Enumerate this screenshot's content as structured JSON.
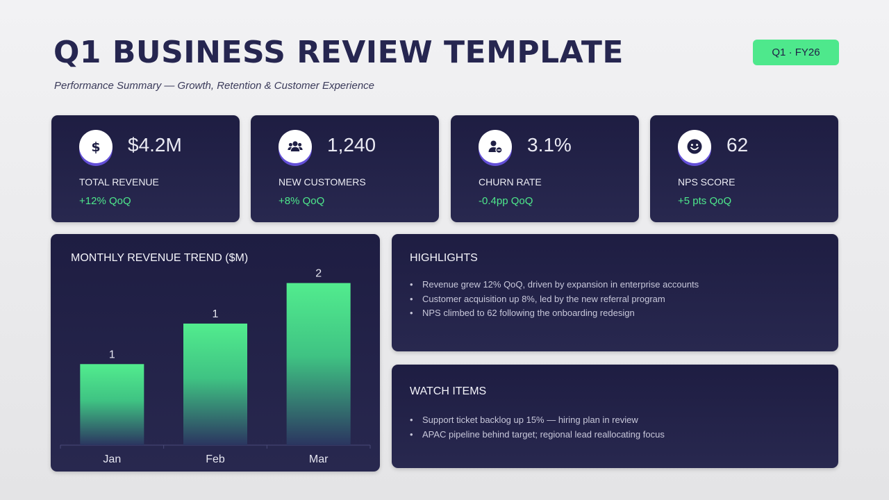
{
  "header": {
    "title": "Q1 BUSINESS REVIEW TEMPLATE",
    "subtitle": "Performance Summary — Growth, Retention & Customer Experience",
    "period_badge": "Q1 · FY26"
  },
  "colors": {
    "panel_background": "#222148",
    "accent_green": "#4ee88c",
    "title_navy": "#262650",
    "icon_ring": "#6450d8"
  },
  "kpis": [
    {
      "icon": "dollar-icon",
      "value": "$4.2M",
      "label": "TOTAL REVENUE",
      "delta": "+12% QoQ"
    },
    {
      "icon": "users-icon",
      "value": "1,240",
      "label": "NEW CUSTOMERS",
      "delta": "+8% QoQ"
    },
    {
      "icon": "user-minus-icon",
      "value": "3.1%",
      "label": "CHURN RATE",
      "delta": "-0.4pp QoQ"
    },
    {
      "icon": "smile-icon",
      "value": "62",
      "label": "NPS SCORE",
      "delta": "+5 pts QoQ"
    }
  ],
  "highlights": {
    "title": "HIGHLIGHTS",
    "items": [
      "Revenue grew 12% QoQ, driven by expansion in enterprise accounts",
      "Customer acquisition up 8%, led by the new referral program",
      "NPS climbed to 62 following the onboarding redesign"
    ]
  },
  "watch_items": {
    "title": "WATCH ITEMS",
    "items": [
      "Support ticket backlog up 15% — hiring plan in review",
      "APAC pipeline behind target; regional lead reallocating focus"
    ]
  },
  "chart_data": {
    "type": "bar",
    "title": "MONTHLY REVENUE TREND ($M)",
    "categories": [
      "Jan",
      "Feb",
      "Mar"
    ],
    "values": [
      1.2,
      1.4,
      1.6
    ],
    "data_labels": [
      "1",
      "1",
      "2"
    ],
    "ylim": [
      0.8,
      1.65
    ],
    "grid": false,
    "legend": "none",
    "bar_color": "#4ee88c",
    "xlabel": "",
    "ylabel": ""
  }
}
